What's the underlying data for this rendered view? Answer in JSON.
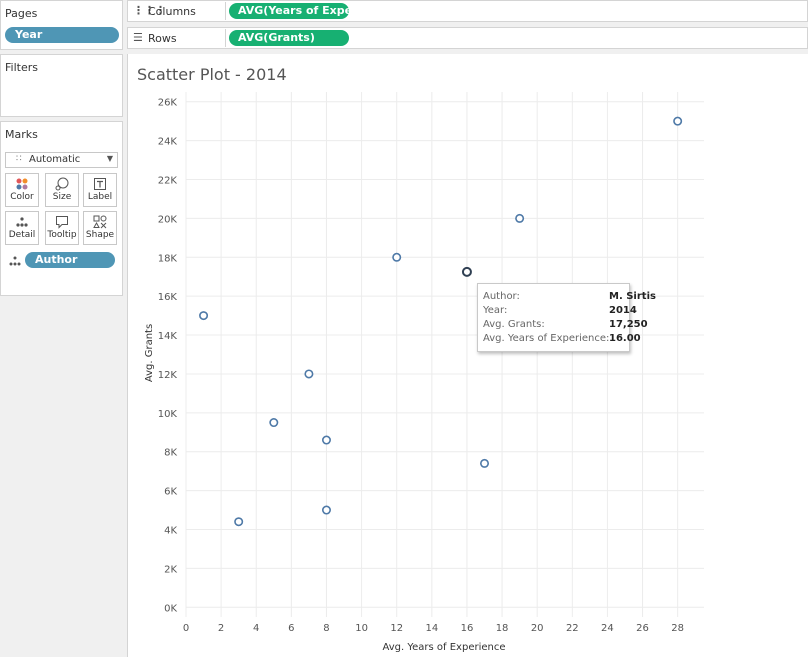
{
  "pages": {
    "title": "Pages",
    "pill": "Year"
  },
  "filters": {
    "title": "Filters"
  },
  "marks": {
    "title": "Marks",
    "type": "Automatic",
    "buttons": [
      "Color",
      "Size",
      "Label",
      "Detail",
      "Tooltip",
      "Shape"
    ],
    "detail_pill": "Author"
  },
  "shelves": {
    "columns": {
      "label": "Columns",
      "pill": "AVG(Years of Experie.."
    },
    "rows": {
      "label": "Rows",
      "pill": "AVG(Grants)"
    }
  },
  "colors": {
    "blue_pill": "#4f96b5",
    "green_pill": "#17b072",
    "mark": "#4e79a7"
  },
  "tooltip": {
    "rows": [
      {
        "key": "Author:",
        "value": "M. Sirtis"
      },
      {
        "key": "Year:",
        "value": "2014"
      },
      {
        "key": "Avg. Grants:",
        "value": "17,250"
      },
      {
        "key": "Avg. Years of Experience:",
        "value": "16.00"
      }
    ]
  },
  "chart_data": {
    "type": "scatter",
    "title": "Scatter Plot - 2014",
    "xlabel": "Avg. Years of Experience",
    "ylabel": "Avg. Grants",
    "xlim": [
      0,
      29.5
    ],
    "ylim": [
      -500,
      26500
    ],
    "xticks": [
      0,
      2,
      4,
      6,
      8,
      10,
      12,
      14,
      16,
      18,
      20,
      22,
      24,
      26,
      28
    ],
    "yticks": [
      0,
      2000,
      4000,
      6000,
      8000,
      10000,
      12000,
      14000,
      16000,
      18000,
      20000,
      22000,
      24000,
      26000
    ],
    "ytick_labels": [
      "0K",
      "2K",
      "4K",
      "6K",
      "8K",
      "10K",
      "12K",
      "14K",
      "16K",
      "18K",
      "20K",
      "22K",
      "24K",
      "26K"
    ],
    "grid": true,
    "points": [
      {
        "x": 1,
        "y": 15000
      },
      {
        "x": 3,
        "y": 4400
      },
      {
        "x": 5,
        "y": 9500
      },
      {
        "x": 7,
        "y": 12000
      },
      {
        "x": 8,
        "y": 8600
      },
      {
        "x": 8,
        "y": 5000
      },
      {
        "x": 12,
        "y": 18000
      },
      {
        "x": 16,
        "y": 17250,
        "highlight": true
      },
      {
        "x": 17,
        "y": 7400
      },
      {
        "x": 19,
        "y": 20000
      },
      {
        "x": 28,
        "y": 25000
      }
    ]
  }
}
